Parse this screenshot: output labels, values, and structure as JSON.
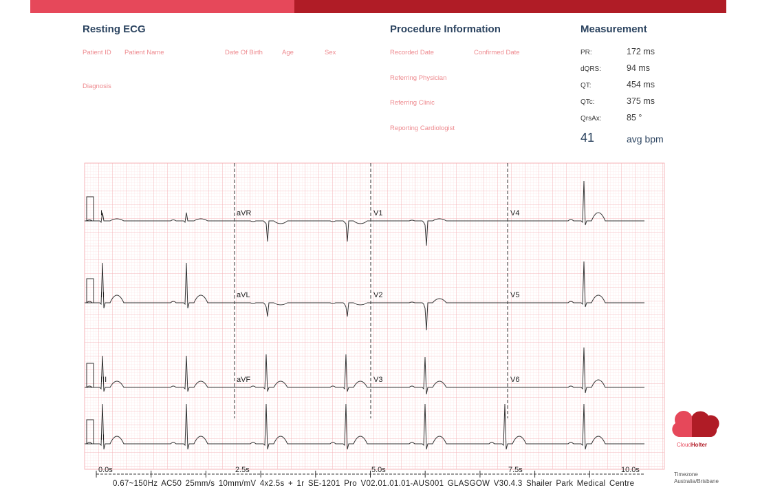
{
  "header": {
    "resting_ecg": "Resting ECG",
    "procedure_info": "Procedure Information",
    "measurement": "Measurement"
  },
  "patient": {
    "patient_id_label": "Patient ID",
    "patient_name_label": "Patient Name",
    "dob_label": "Date Of Birth",
    "age_label": "Age",
    "sex_label": "Sex",
    "diagnosis_label": "Diagnosis"
  },
  "procedure": {
    "recorded_date_label": "Recorded Date",
    "confirmed_date_label": "Confirmed Date",
    "referring_physician_label": "Referring Physician",
    "referring_clinic_label": "Referring Clinic",
    "reporting_cardiologist_label": "Reporting Cardiologist"
  },
  "measurement": {
    "items": [
      {
        "label": "PR:",
        "value": "172 ms"
      },
      {
        "label": "dQRS:",
        "value": "94 ms"
      },
      {
        "label": "QT:",
        "value": "454 ms"
      },
      {
        "label": "QTc:",
        "value": "375 ms"
      },
      {
        "label": "QrsAx:",
        "value": "85 °"
      }
    ],
    "heart_rate": "41",
    "heart_rate_unit": "avg bpm"
  },
  "leads": [
    "I",
    "aVR",
    "V1",
    "V4",
    "II",
    "aVL",
    "V2",
    "V5",
    "III",
    "aVF",
    "V3",
    "V6",
    "II"
  ],
  "time_axis": [
    "0.0s",
    "2.5s",
    "5.0s",
    "7.5s",
    "10.0s"
  ],
  "footer_text": "0.67~150Hz AC50  25mm/s 10mm/mV 4x2.5s + 1r  SE-1201 Pro V02.01.01.01-AUS001  GLASGOW V30.4.3  Shailer Park Medical Centre",
  "timezone": {
    "label": "Timezone",
    "value": "Australia/Brisbane"
  },
  "logo": {
    "name_part1": "Cloud",
    "name_part2": "Holter",
    "icon": "cloud-icon"
  },
  "colors": {
    "brand_light": "#e6485a",
    "brand_dark": "#b01c26",
    "grid_major": "#f3a3a8",
    "grid_minor": "#fad3d6",
    "label_pink": "#ee8a8f",
    "heading_navy": "#2c4460"
  }
}
